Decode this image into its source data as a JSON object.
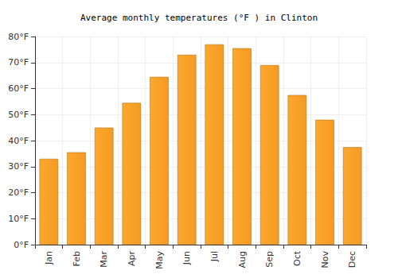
{
  "chart_data": {
    "type": "bar",
    "title": "Average monthly temperatures (°F ) in Clinton",
    "categories": [
      "Jan",
      "Feb",
      "Mar",
      "Apr",
      "May",
      "Jun",
      "Jul",
      "Aug",
      "Sep",
      "Oct",
      "Nov",
      "Dec"
    ],
    "values": [
      33,
      35.5,
      45,
      54.5,
      64.5,
      73,
      77,
      75.5,
      69,
      57.5,
      48,
      37.5
    ],
    "color": "#fba830",
    "ylim": [
      0,
      80
    ],
    "yticks": [
      {
        "value": 0,
        "label": "0°F"
      },
      {
        "value": 10,
        "label": "10°F"
      },
      {
        "value": 20,
        "label": "20°F"
      },
      {
        "value": 30,
        "label": "30°F"
      },
      {
        "value": 40,
        "label": "40°F"
      },
      {
        "value": 50,
        "label": "50°F"
      },
      {
        "value": 60,
        "label": "60°F"
      },
      {
        "value": 70,
        "label": "70°F"
      },
      {
        "value": 80,
        "label": "80°F"
      }
    ],
    "grid": true
  }
}
